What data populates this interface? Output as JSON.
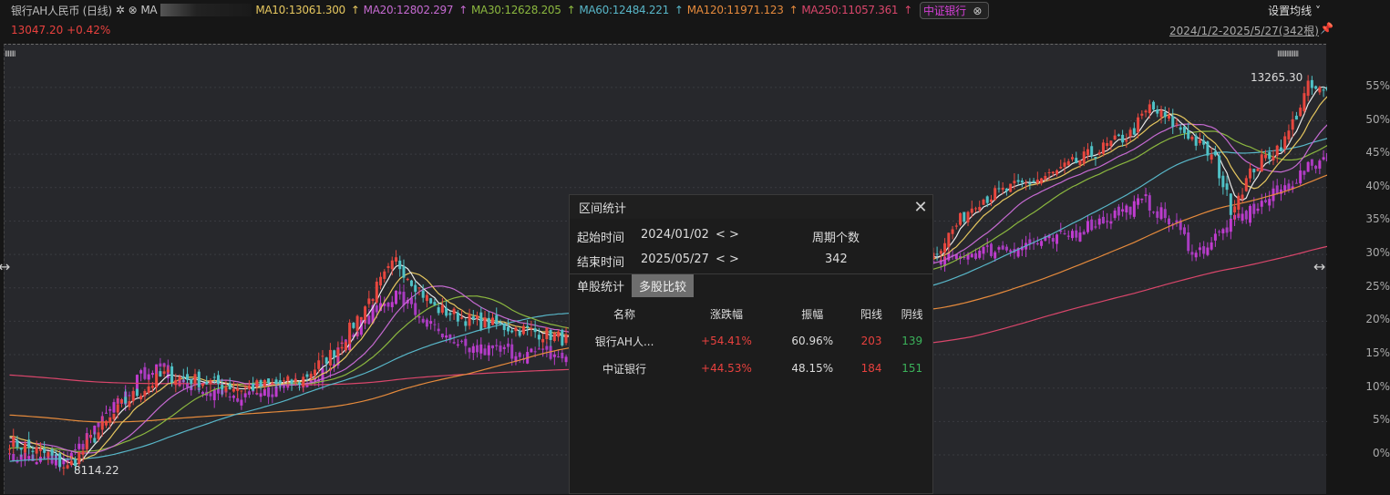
{
  "header": {
    "title": "银行AH人民币 (日线)",
    "ma_label": "MA",
    "ma_values": [
      {
        "label": "MA10:13061.300",
        "color": "#e6c75f"
      },
      {
        "label": "MA20:12802.297",
        "color": "#c56ad1"
      },
      {
        "label": "MA30:12628.205",
        "color": "#8bb73f"
      },
      {
        "label": "MA60:12484.221",
        "color": "#58b6c8"
      },
      {
        "label": "MA120:11971.123",
        "color": "#e58a3c"
      },
      {
        "label": "MA250:11057.361",
        "color": "#d9466b"
      }
    ],
    "arrow": "↑",
    "compare_tag": "中证银行",
    "set_ma": "设置均线 ˅",
    "price": "13047.20 +0.42%",
    "range": "2024/1/2-2025/5/27(342根)"
  },
  "annotations": {
    "high": "13265.30",
    "low": "8114.22"
  },
  "yaxis": [
    "55%",
    "50%",
    "45%",
    "40%",
    "35%",
    "30%",
    "25%",
    "20%",
    "15%",
    "10%",
    "5%",
    "0%"
  ],
  "dialog": {
    "title": "区间统计",
    "start_label": "起始时间",
    "start_value": "2024/01/02",
    "end_label": "结束时间",
    "end_value": "2025/05/27",
    "nav": "< >",
    "period_label": "周期个数",
    "period_value": "342",
    "tabs": [
      "单股统计",
      "多股比较"
    ],
    "active_tab": 1,
    "columns": [
      "名称",
      "涨跌幅",
      "振幅",
      "阳线",
      "阴线"
    ],
    "rows": [
      [
        "银行AH人...",
        "+54.41%",
        "60.96%",
        "203",
        "139"
      ],
      [
        "中证银行",
        "+44.53%",
        "48.15%",
        "184",
        "151"
      ]
    ]
  },
  "colors": {
    "up": "#e8473f",
    "down": "#4fc1c6",
    "index": "#c03ccf",
    "ma5": "#e8e8e8"
  },
  "chart_data": {
    "type": "candlestick",
    "bars": 342,
    "yunit": "%",
    "ylim": [
      -3,
      58
    ],
    "main_anchors": [
      [
        0,
        2
      ],
      [
        10,
        0
      ],
      [
        15,
        -2
      ],
      [
        30,
        8
      ],
      [
        40,
        12
      ],
      [
        60,
        10
      ],
      [
        75,
        11
      ],
      [
        85,
        16
      ],
      [
        95,
        25
      ],
      [
        100,
        29
      ],
      [
        110,
        22
      ],
      [
        120,
        20
      ],
      [
        140,
        18
      ],
      [
        150,
        16
      ],
      [
        180,
        20
      ],
      [
        210,
        26
      ],
      [
        239,
        30
      ],
      [
        250,
        38
      ],
      [
        270,
        42
      ],
      [
        290,
        48
      ],
      [
        295,
        52
      ],
      [
        305,
        48
      ],
      [
        312,
        44
      ],
      [
        316,
        37
      ],
      [
        322,
        43
      ],
      [
        330,
        47
      ],
      [
        336,
        55
      ],
      [
        341,
        54
      ]
    ],
    "compare_anchors": [
      [
        0,
        0
      ],
      [
        15,
        -1
      ],
      [
        36,
        13
      ],
      [
        60,
        8
      ],
      [
        80,
        12
      ],
      [
        95,
        22
      ],
      [
        100,
        24
      ],
      [
        115,
        16
      ],
      [
        140,
        15
      ],
      [
        150,
        14
      ],
      [
        200,
        20
      ],
      [
        246,
        30
      ],
      [
        270,
        32
      ],
      [
        294,
        38
      ],
      [
        302,
        34
      ],
      [
        307,
        30
      ],
      [
        315,
        34
      ],
      [
        325,
        38
      ],
      [
        330,
        40
      ],
      [
        341,
        45
      ]
    ]
  }
}
